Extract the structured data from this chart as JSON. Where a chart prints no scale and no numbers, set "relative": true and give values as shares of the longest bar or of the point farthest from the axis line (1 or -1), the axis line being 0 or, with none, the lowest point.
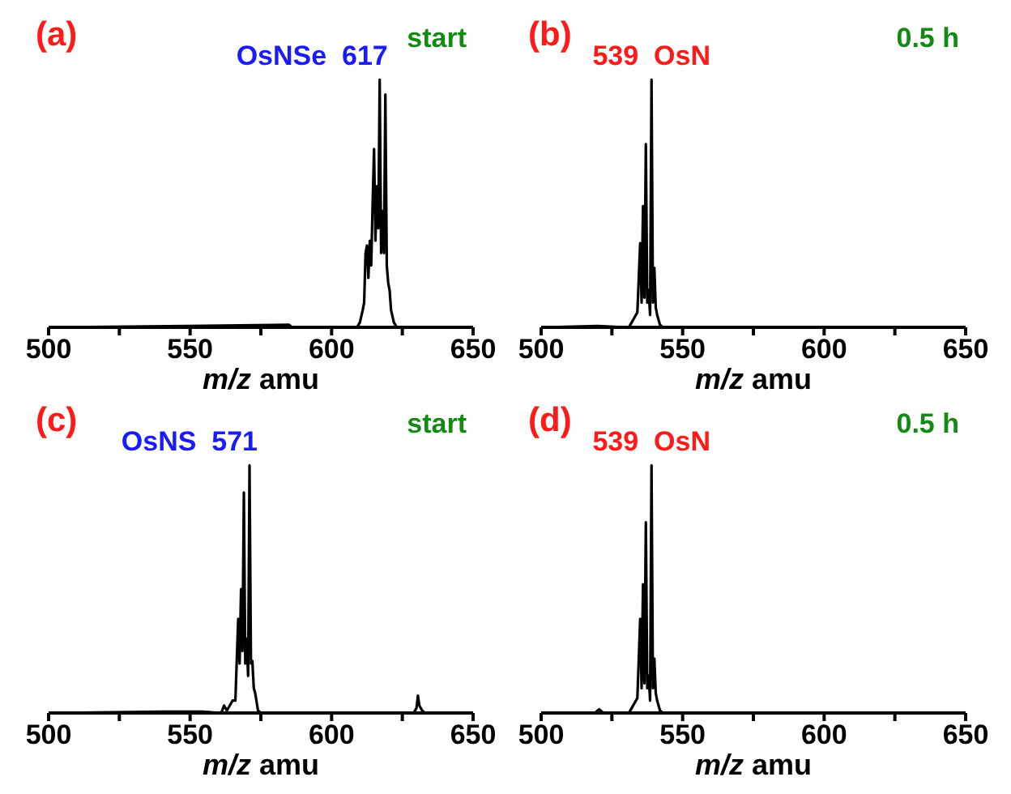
{
  "chart_data": [
    {
      "type": "line",
      "title": "(a)",
      "xlabel": "m/z amu",
      "relative": true,
      "xlim": [
        500,
        650
      ],
      "xticks": [
        500,
        {
          "value": 525,
          "label": null
        },
        550,
        {
          "value": 575,
          "label": null
        },
        600,
        {
          "value": 625,
          "label": null
        },
        650
      ],
      "annotations": [
        {
          "text": "OsNSe  617",
          "x": 617,
          "y": 1
        },
        "start"
      ],
      "x": [
        500,
        585,
        586,
        609,
        610,
        611,
        611.5,
        612,
        612.5,
        613,
        613.5,
        614,
        614.5,
        615,
        615.5,
        616,
        616.5,
        617,
        617.5,
        618,
        618.5,
        619,
        619.5,
        620,
        620.5,
        621,
        622,
        623,
        650
      ],
      "series": [
        {
          "color": "#000000",
          "values": [
            0,
            0.01,
            0,
            0,
            0.02,
            0.07,
            0.1,
            0.3,
            0.33,
            0.2,
            0.35,
            0.25,
            0.5,
            0.72,
            0.35,
            0.57,
            0.4,
            1,
            0.3,
            0.47,
            0.3,
            0.94,
            0.25,
            0.18,
            0.15,
            0.07,
            0.02,
            0,
            0
          ]
        }
      ]
    },
    {
      "type": "line",
      "title": "(b)",
      "xlabel": "m/z amu",
      "relative": true,
      "xlim": [
        500,
        650
      ],
      "xticks": [
        500,
        {
          "value": 525,
          "label": null
        },
        550,
        {
          "value": 575,
          "label": null
        },
        600,
        {
          "value": 625,
          "label": null
        },
        650
      ],
      "annotations": [
        {
          "text": "539  OsN",
          "x": 539,
          "y": 1
        },
        "0.5 h"
      ],
      "x": [
        500,
        520,
        531,
        532,
        533,
        534,
        534.5,
        535,
        535.5,
        536,
        536.5,
        537,
        537.5,
        538,
        538.5,
        539,
        539.5,
        540,
        540.5,
        541,
        542,
        543,
        650
      ],
      "series": [
        {
          "color": "#000000",
          "values": [
            0,
            0.005,
            0,
            0.02,
            0.04,
            0.06,
            0.2,
            0.34,
            0.1,
            0.49,
            0.12,
            0.74,
            0.1,
            0.15,
            0.05,
            1,
            0.1,
            0.24,
            0.08,
            0.05,
            0.01,
            0,
            0
          ]
        }
      ]
    },
    {
      "type": "line",
      "title": "(c)",
      "xlabel": "m/z amu",
      "relative": true,
      "xlim": [
        500,
        650
      ],
      "xticks": [
        500,
        {
          "value": 525,
          "label": null
        },
        550,
        {
          "value": 575,
          "label": null
        },
        600,
        {
          "value": 625,
          "label": null
        },
        650
      ],
      "annotations": [
        {
          "text": "OsNS  571",
          "x": 571,
          "y": 1
        },
        "start"
      ],
      "x": [
        500,
        540,
        555,
        561,
        562,
        563,
        565,
        566,
        567,
        567.5,
        568,
        568.5,
        569,
        569.5,
        570,
        570.5,
        571,
        571.5,
        572,
        572.5,
        573,
        574,
        575,
        629,
        630,
        630.5,
        631,
        632,
        633,
        650
      ],
      "series": [
        {
          "color": "#000000",
          "values": [
            0,
            0.005,
            0.005,
            0,
            0.03,
            0.01,
            0.05,
            0.05,
            0.38,
            0.2,
            0.5,
            0.25,
            0.89,
            0.2,
            0.3,
            0.15,
            1,
            0.2,
            0.21,
            0.1,
            0.08,
            0.01,
            0,
            0,
            0.02,
            0.07,
            0.03,
            0.01,
            0,
            0
          ]
        }
      ]
    },
    {
      "type": "line",
      "title": "(d)",
      "xlabel": "m/z amu",
      "relative": true,
      "xlim": [
        500,
        650
      ],
      "xticks": [
        500,
        {
          "value": 525,
          "label": null
        },
        550,
        {
          "value": 575,
          "label": null
        },
        600,
        {
          "value": 625,
          "label": null
        },
        650
      ],
      "annotations": [
        {
          "text": "539  OsN",
          "x": 539,
          "y": 1
        },
        "0.5 h"
      ],
      "x": [
        500,
        519,
        520.5,
        522,
        531,
        532,
        533,
        534,
        534.5,
        535,
        535.5,
        536,
        536.5,
        537,
        537.5,
        538,
        538.5,
        539,
        539.5,
        540,
        540.5,
        541,
        542,
        543,
        650
      ],
      "series": [
        {
          "color": "#000000",
          "values": [
            0,
            0,
            0.015,
            0,
            0,
            0.02,
            0.04,
            0.06,
            0.22,
            0.38,
            0.1,
            0.52,
            0.12,
            0.77,
            0.1,
            0.15,
            0.05,
            1,
            0.1,
            0.22,
            0.08,
            0.05,
            0.01,
            0,
            0
          ]
        }
      ]
    }
  ]
}
